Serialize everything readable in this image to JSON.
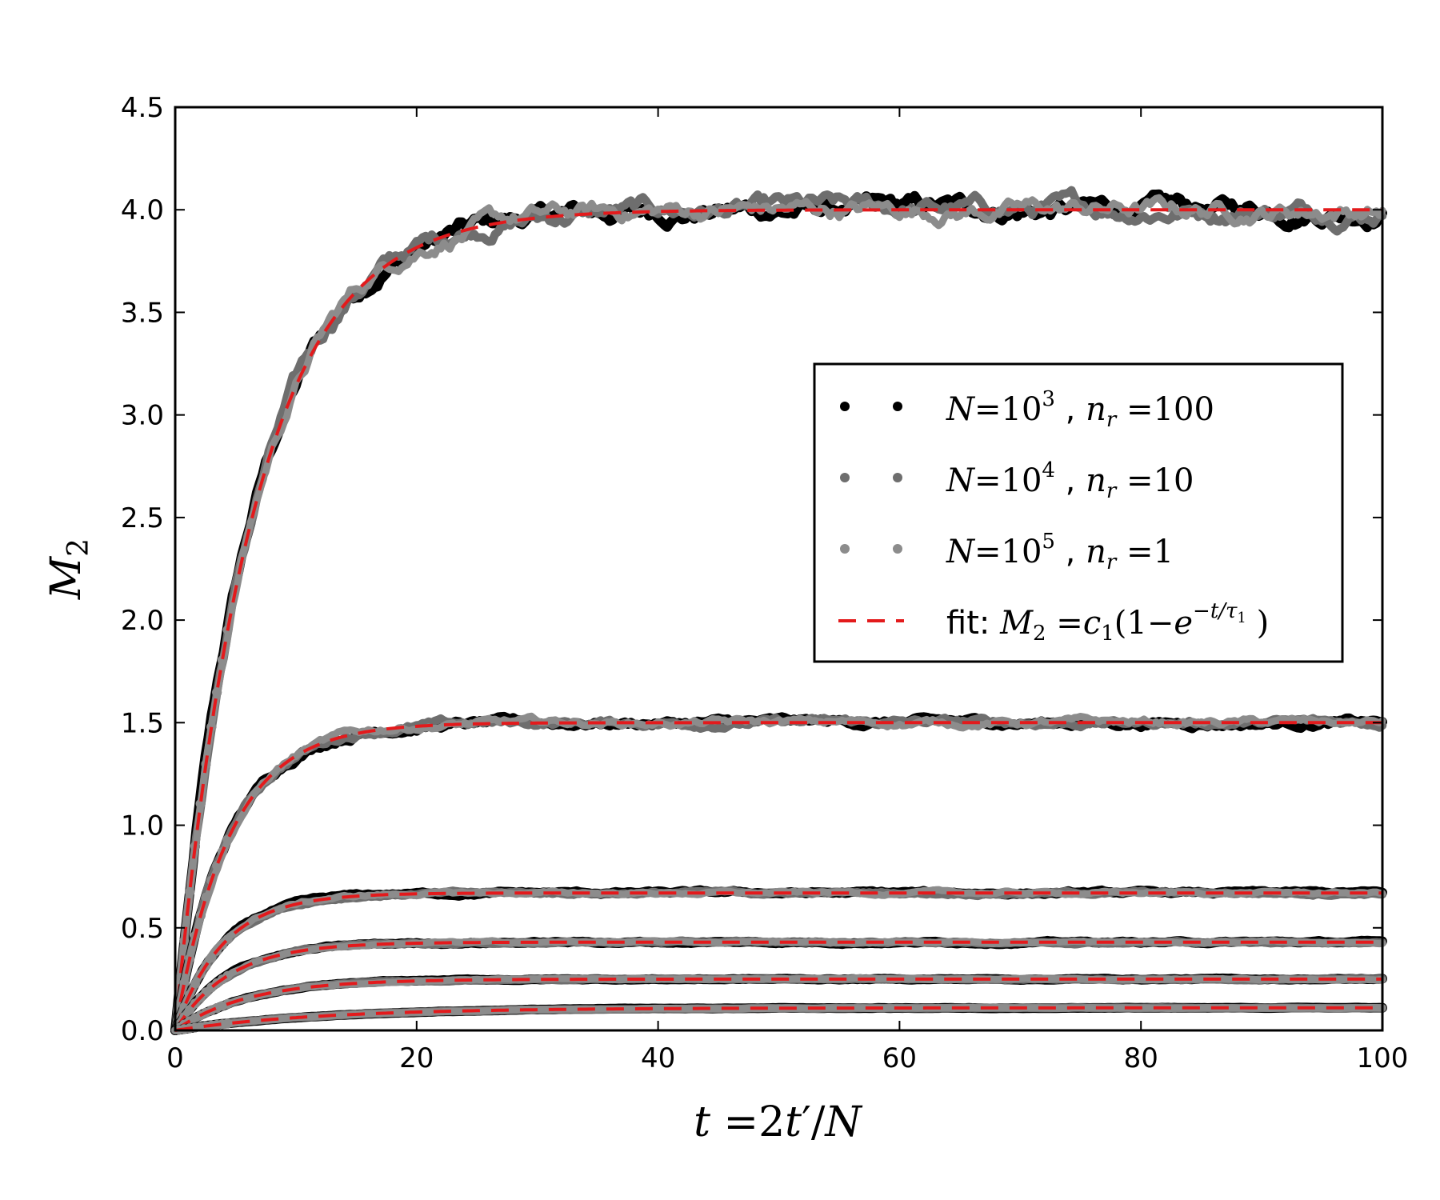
{
  "chart_data": {
    "type": "line",
    "title": "",
    "xlabel": "t =2t′/N",
    "ylabel": "M₂",
    "xlim": [
      0,
      100
    ],
    "ylim": [
      0.0,
      4.5
    ],
    "xticks": [
      "0",
      "20",
      "40",
      "60",
      "80",
      "100"
    ],
    "yticks": [
      "0.0",
      "0.5",
      "1.0",
      "1.5",
      "2.0",
      "2.5",
      "3.0",
      "3.5",
      "4.0",
      "4.5"
    ],
    "grid": false,
    "legend_position": "center-right",
    "series": [
      {
        "name": "N=10³ , n_r =100",
        "style": "dots",
        "color": "#000000"
      },
      {
        "name": "N=10⁴ , n_r =10",
        "style": "dots",
        "color": "#6e6e6e"
      },
      {
        "name": "N=10⁵ , n_r =1",
        "style": "dots",
        "color": "#8c8c8c"
      },
      {
        "name": "fit: M₂ =c₁(1−e^(−t/τ₁))",
        "style": "dashed",
        "color": "#e31a1c"
      }
    ],
    "curves": [
      {
        "c1": 4.0,
        "tau1": 6.5
      },
      {
        "c1": 1.5,
        "tau1": 4.5
      },
      {
        "c1": 0.67,
        "tau1": 4.0
      },
      {
        "c1": 0.43,
        "tau1": 4.5
      },
      {
        "c1": 0.25,
        "tau1": 6.0
      },
      {
        "c1": 0.11,
        "tau1": 12.0
      }
    ],
    "legend": {
      "n1": {
        "pre": "N",
        "eq": "=",
        "base": "10",
        "exp": "3",
        "sep": " , ",
        "var": "n",
        "sub": "r",
        "eq2": " =",
        "val": "100"
      },
      "n2": {
        "pre": "N",
        "eq": "=",
        "base": "10",
        "exp": "4",
        "sep": " , ",
        "var": "n",
        "sub": "r",
        "eq2": " =",
        "val": "10"
      },
      "n3": {
        "pre": "N",
        "eq": "=",
        "base": "10",
        "exp": "5",
        "sep": " , ",
        "var": "n",
        "sub": "r",
        "eq2": " =",
        "val": "1"
      },
      "fit": {
        "prefix": "fit: ",
        "lhs": "M",
        "lhs_sub": "2",
        "eq": " =",
        "c": "c",
        "c_sub": "1",
        "open": "(1−",
        "e": "e",
        "exp": "−t/τ",
        "exp_sub": "1",
        "close": " )"
      }
    },
    "axis": {
      "x": {
        "t": "t",
        "eq": " =2",
        "tp": "t",
        "prime": "′",
        "slash": "/",
        "N": "N"
      },
      "y": {
        "M": "M",
        "sub": "2"
      }
    }
  }
}
